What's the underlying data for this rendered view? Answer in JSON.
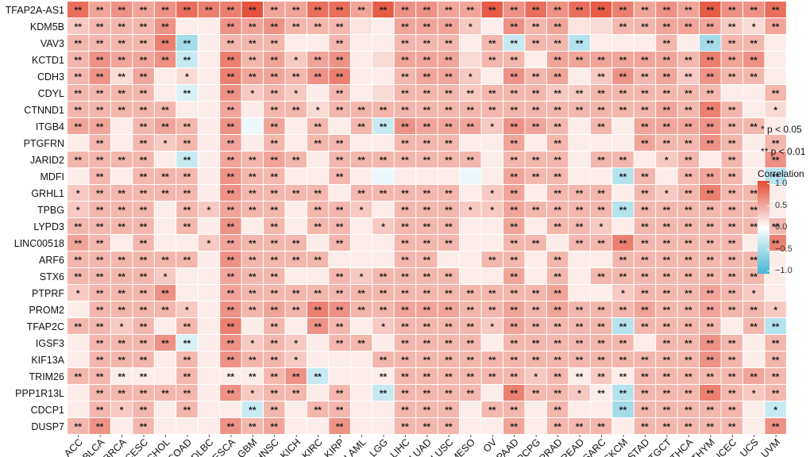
{
  "chart_data": {
    "type": "heatmap",
    "genes": [
      "TFAP2A-AS1",
      "KDM5B",
      "VAV3",
      "KCTD1",
      "CDH3",
      "CDYL",
      "CTNND1",
      "ITGB4",
      "PTGFRN",
      "JARID2",
      "MDFI",
      "GRHL1",
      "TPBG",
      "LYPD3",
      "LINC00518",
      "ARF6",
      "STX6",
      "PTPRF",
      "PROM2",
      "TFAP2C",
      "IGSF3",
      "KIF13A",
      "TRIM26",
      "PPP1R13L",
      "CDCP1",
      "DUSP7"
    ],
    "cancers": [
      "ACC",
      "BLCA",
      "BRCA",
      "CESC",
      "CHOL",
      "COAD",
      "DLBC",
      "ESCA",
      "GBM",
      "HNSC",
      "KICH",
      "KIRC",
      "KIRP",
      "LAML",
      "LGG",
      "LIHC",
      "LUAD",
      "LUSC",
      "MESO",
      "OV",
      "PAAD",
      "PCPG",
      "PRAD",
      "READ",
      "SARC",
      "SKCM",
      "STAD",
      "TGCT",
      "THCA",
      "THYM",
      "UCEC",
      "UCS",
      "UVM"
    ],
    "correlation": [
      [
        0.8,
        0.5,
        0.6,
        0.5,
        0.6,
        0.8,
        0.7,
        0.7,
        0.95,
        0.5,
        0.5,
        0.8,
        0.8,
        0.5,
        0.9,
        0.6,
        0.6,
        0.5,
        0.5,
        0.9,
        0.6,
        0.8,
        0.6,
        0.8,
        0.9,
        0.7,
        0.5,
        0.6,
        0.5,
        0.9,
        0.6,
        0.6,
        0.8
      ],
      [
        0.3,
        0.4,
        0.4,
        0.4,
        0.6,
        0.1,
        0.1,
        0.6,
        0.5,
        0.6,
        0.4,
        0.4,
        0.4,
        0.15,
        0.1,
        0.5,
        0.5,
        0.5,
        0.3,
        0.1,
        0.6,
        0.4,
        0.5,
        0.15,
        0.2,
        0.4,
        0.4,
        0.5,
        0.5,
        0.5,
        0.3,
        0.2,
        0.5
      ],
      [
        0.4,
        0.4,
        0.4,
        0.4,
        0.7,
        -0.5,
        0.1,
        0.4,
        0.4,
        0.4,
        0.1,
        0.1,
        0.4,
        0.1,
        0.1,
        0.4,
        0.4,
        0.4,
        0.1,
        0.4,
        -0.3,
        0.4,
        0.4,
        -0.4,
        0.1,
        0.1,
        0.1,
        0.4,
        0.1,
        -0.5,
        0.4,
        0.4,
        0.1
      ],
      [
        0.4,
        0.6,
        0.5,
        0.5,
        0.6,
        -0.3,
        0.1,
        0.7,
        0.4,
        0.5,
        0.3,
        0.5,
        0.6,
        0.1,
        0.2,
        0.5,
        0.5,
        0.5,
        0.2,
        0.4,
        0.4,
        0.1,
        0.5,
        0.5,
        0.5,
        0.5,
        0.5,
        0.5,
        0.4,
        0.7,
        0.5,
        0.6,
        0.1
      ],
      [
        0.4,
        0.6,
        0.2,
        0.5,
        0.1,
        0.2,
        0.1,
        0.7,
        0.5,
        0.5,
        0.4,
        0.6,
        0.7,
        0.1,
        0.1,
        0.4,
        0.5,
        0.5,
        0.3,
        0.1,
        0.6,
        0.4,
        0.5,
        0.1,
        0.3,
        0.6,
        0.4,
        0.5,
        0.3,
        0.6,
        0.4,
        0.4,
        0.1
      ],
      [
        0.4,
        0.4,
        0.4,
        0.4,
        0.1,
        -0.2,
        0.1,
        0.6,
        0.3,
        0.4,
        0.3,
        0.1,
        0.4,
        0.1,
        0.2,
        0.4,
        0.4,
        0.4,
        0.3,
        0.4,
        0.4,
        0.4,
        0.3,
        0.3,
        0.4,
        0.4,
        0.4,
        0.4,
        0.4,
        0.4,
        0.1,
        0.1,
        0.4
      ],
      [
        0.4,
        0.4,
        0.4,
        0.4,
        0.4,
        0.1,
        0.1,
        0.5,
        0.1,
        0.4,
        0.4,
        0.2,
        0.4,
        0.4,
        0.4,
        0.4,
        0.4,
        0.4,
        0.4,
        0.4,
        0.4,
        0.4,
        0.4,
        0.4,
        0.4,
        0.4,
        0.4,
        0.5,
        0.4,
        0.7,
        0.4,
        0.1,
        0.2
      ],
      [
        0.5,
        0.5,
        0.1,
        0.4,
        0.5,
        0.4,
        0.1,
        0.6,
        -0.1,
        0.5,
        0.1,
        0.4,
        0.1,
        0.4,
        -0.3,
        0.6,
        0.5,
        0.5,
        0.5,
        0.3,
        0.6,
        0.5,
        0.4,
        0.1,
        0.4,
        0.1,
        0.5,
        0.5,
        0.5,
        0.6,
        0.4,
        0.4,
        0.1
      ],
      [
        0.1,
        0.4,
        0.1,
        0.4,
        0.3,
        0.4,
        0.1,
        0.5,
        0.1,
        0.4,
        0.1,
        0.4,
        0.4,
        0.1,
        0.1,
        0.4,
        0.4,
        0.4,
        0.1,
        0.1,
        0.5,
        0.1,
        0.4,
        0.1,
        0.1,
        0.1,
        0.5,
        0.4,
        0.4,
        0.6,
        0.4,
        0.1,
        0.4
      ],
      [
        0.4,
        0.4,
        0.4,
        0.4,
        0.1,
        -0.3,
        0.1,
        0.5,
        0.4,
        0.5,
        0.4,
        0.1,
        0.4,
        0.4,
        0.4,
        0.4,
        0.4,
        0.4,
        0.4,
        0.1,
        0.4,
        0.4,
        0.4,
        0.1,
        0.4,
        0.4,
        0.1,
        0.3,
        0.4,
        0.1,
        0.4,
        0.1,
        0.6
      ],
      [
        0.1,
        0.4,
        0.1,
        0.4,
        0.4,
        0.4,
        0.1,
        0.6,
        0.4,
        0.4,
        0.1,
        0.1,
        0.4,
        0.1,
        -0.1,
        0.1,
        0.1,
        0.1,
        -0.1,
        0.1,
        0.5,
        0.4,
        0.4,
        0.1,
        0.1,
        -0.4,
        0.4,
        0.1,
        0.4,
        0.5,
        0.4,
        0.1,
        -0.4
      ],
      [
        0.3,
        0.4,
        0.4,
        0.4,
        0.4,
        0.4,
        0.1,
        0.6,
        0.4,
        0.4,
        0.4,
        0.4,
        0.1,
        0.4,
        0.4,
        0.4,
        0.4,
        0.4,
        0.1,
        0.3,
        0.5,
        0.1,
        0.4,
        0.4,
        0.4,
        0.1,
        0.4,
        0.3,
        0.4,
        0.7,
        0.4,
        0.4,
        0.1
      ],
      [
        0.3,
        0.4,
        0.4,
        0.4,
        0.1,
        0.4,
        0.3,
        0.5,
        0.4,
        0.4,
        0.1,
        0.4,
        0.4,
        0.3,
        0.1,
        0.4,
        0.4,
        0.4,
        0.3,
        0.3,
        0.5,
        0.4,
        0.4,
        0.4,
        0.4,
        -0.4,
        0.4,
        0.4,
        0.4,
        0.4,
        0.4,
        0.4,
        0.1
      ],
      [
        0.4,
        0.4,
        0.4,
        0.4,
        0.1,
        0.4,
        0.1,
        0.6,
        0.1,
        0.4,
        0.1,
        0.4,
        0.4,
        0.1,
        0.3,
        0.4,
        0.4,
        0.4,
        0.1,
        0.1,
        0.5,
        0.1,
        0.4,
        0.4,
        0.3,
        0.1,
        0.4,
        0.4,
        0.4,
        0.4,
        0.4,
        0.4,
        0.4
      ],
      [
        0.5,
        0.4,
        0.1,
        0.4,
        0.1,
        0.1,
        0.3,
        0.5,
        0.4,
        0.4,
        0.4,
        0.1,
        0.4,
        0.1,
        0.1,
        0.4,
        0.4,
        0.4,
        0.1,
        0.1,
        0.4,
        0.4,
        0.1,
        0.4,
        0.4,
        0.7,
        0.4,
        0.4,
        0.4,
        0.4,
        0.4,
        0.1,
        0.7
      ],
      [
        0.4,
        0.4,
        0.4,
        0.4,
        0.4,
        0.4,
        0.1,
        0.6,
        0.4,
        0.4,
        0.4,
        0.4,
        0.1,
        0.1,
        0.1,
        0.4,
        0.4,
        0.1,
        0.1,
        0.4,
        0.4,
        0.1,
        0.4,
        0.1,
        0.1,
        0.4,
        0.4,
        0.4,
        0.4,
        0.4,
        0.4,
        0.4,
        0.1
      ],
      [
        0.4,
        0.4,
        0.4,
        0.4,
        0.3,
        0.1,
        0.1,
        0.5,
        0.4,
        0.4,
        0.1,
        0.1,
        0.4,
        0.3,
        0.4,
        0.4,
        0.4,
        0.4,
        0.1,
        0.1,
        0.5,
        0.1,
        0.4,
        0.1,
        0.4,
        0.4,
        0.4,
        0.4,
        0.4,
        0.4,
        0.4,
        0.4,
        0.1
      ],
      [
        0.3,
        0.4,
        0.4,
        0.4,
        0.6,
        0.1,
        0.1,
        0.5,
        0.4,
        0.4,
        0.4,
        0.4,
        0.4,
        0.4,
        0.4,
        0.4,
        0.4,
        0.4,
        0.4,
        0.4,
        0.4,
        0.4,
        0.5,
        0.1,
        0.1,
        0.3,
        0.4,
        0.4,
        0.4,
        0.5,
        0.4,
        0.3,
        0.1
      ],
      [
        0.1,
        0.4,
        0.4,
        0.4,
        0.4,
        0.3,
        0.1,
        0.6,
        0.4,
        0.5,
        0.4,
        0.7,
        0.6,
        0.4,
        0.4,
        0.5,
        0.5,
        0.5,
        0.4,
        0.4,
        0.5,
        0.4,
        0.5,
        0.4,
        0.4,
        0.4,
        0.5,
        0.4,
        0.4,
        0.5,
        0.4,
        0.4,
        0.3
      ],
      [
        0.4,
        0.4,
        0.3,
        0.4,
        0.1,
        0.4,
        0.1,
        0.7,
        0.1,
        0.4,
        0.1,
        0.6,
        0.4,
        0.1,
        0.3,
        0.4,
        0.4,
        0.4,
        0.4,
        0.3,
        0.5,
        0.4,
        0.4,
        0.4,
        0.4,
        -0.4,
        0.4,
        0.4,
        0.4,
        0.4,
        0.1,
        0.4,
        -0.4
      ],
      [
        0.1,
        0.4,
        0.4,
        0.4,
        0.6,
        -0.2,
        0.1,
        0.6,
        0.3,
        0.4,
        0.3,
        0.1,
        0.4,
        0.4,
        0.1,
        0.4,
        0.4,
        0.4,
        0.4,
        0.1,
        0.4,
        0.4,
        0.4,
        0.4,
        0.4,
        0.4,
        0.1,
        0.4,
        0.4,
        0.6,
        0.4,
        0.1,
        0.4
      ],
      [
        0.1,
        0.4,
        0.4,
        0.4,
        0.1,
        0.4,
        0.1,
        0.6,
        0.4,
        0.4,
        0.3,
        0.1,
        0.1,
        0.1,
        0.4,
        0.4,
        0.4,
        0.4,
        0.4,
        0.4,
        0.4,
        0.4,
        0.4,
        0.4,
        0.4,
        0.4,
        0.4,
        0.4,
        0.4,
        0.6,
        0.4,
        0.1,
        0.4
      ],
      [
        0.4,
        0.4,
        0.1,
        0.1,
        0.1,
        0.4,
        0.1,
        0.1,
        0.1,
        0.4,
        0.6,
        -0.3,
        0.1,
        0.1,
        0.1,
        0.4,
        0.4,
        0.4,
        0.4,
        0.4,
        0.4,
        0.3,
        0.4,
        0.1,
        0.3,
        0.1,
        0.4,
        0.4,
        0.4,
        0.4,
        0.4,
        0.5,
        0.4
      ],
      [
        0.1,
        0.4,
        0.4,
        0.4,
        0.4,
        0.4,
        0.1,
        0.6,
        0.3,
        0.4,
        0.4,
        0.1,
        0.4,
        0.1,
        -0.3,
        0.4,
        0.4,
        0.4,
        0.4,
        0.1,
        0.7,
        0.4,
        0.4,
        0.3,
        0.1,
        -0.4,
        0.4,
        0.4,
        0.4,
        0.7,
        0.4,
        0.3,
        0.4
      ],
      [
        0.1,
        0.4,
        0.3,
        0.4,
        0.1,
        0.4,
        0.1,
        0.1,
        -0.3,
        0.4,
        0.1,
        0.4,
        0.4,
        0.1,
        0.1,
        0.4,
        0.4,
        0.4,
        0.1,
        0.4,
        0.4,
        0.1,
        0.4,
        0.1,
        0.1,
        -0.5,
        0.4,
        0.4,
        0.4,
        0.4,
        0.4,
        0.1,
        -0.3
      ],
      [
        0.4,
        0.6,
        0.1,
        0.4,
        0.1,
        0.1,
        0.1,
        0.6,
        0.4,
        0.5,
        0.1,
        0.1,
        0.6,
        0.1,
        0.1,
        0.4,
        0.4,
        0.4,
        0.1,
        0.1,
        0.5,
        0.1,
        0.4,
        0.4,
        0.4,
        0.1,
        0.4,
        0.4,
        0.4,
        0.4,
        0.4,
        0.1,
        0.6
      ]
    ],
    "significance": [
      "** ** ** ** ** ** ** ** ** ** ** ** ** ** ** ** ** ** ** ** ** ** ** ** ** ** ** ** ** ** ** ** **",
      "** ** ** ** ** . . ** ** ** ** ** ** . . ** ** ** * . ** ** ** . . ** ** ** ** ** ** * **",
      "** ** ** ** ** ** . ** ** ** . . ** . . ** ** ** . ** ** ** ** ** . . . ** . ** ** ** .",
      "** ** ** ** ** ** . ** ** ** * ** ** . . ** ** ** . ** ** . ** ** ** ** ** ** ** ** ** ** .",
      "** ** ** ** . * . ** ** ** ** ** ** . . ** ** ** * . ** ** ** . ** ** ** ** ** ** ** ** .",
      "** ** ** ** . ** . ** * ** * . ** . . ** ** ** ** ** ** ** ** ** ** ** ** ** ** ** . . **",
      "** ** ** ** ** . . ** . ** ** * ** ** ** ** ** ** ** ** ** ** ** ** ** ** ** ** ** ** ** . *",
      "** ** . ** ** ** . ** . ** . ** . ** ** ** ** ** ** * ** ** ** . ** . ** ** ** ** ** ** .",
      ". ** . ** * ** . ** . ** . ** ** . . ** ** ** . . ** . ** . . . ** ** ** ** ** . **",
      "** ** ** ** . ** . ** ** ** ** . ** ** ** ** ** ** ** . ** ** ** . ** ** . * ** . ** . **",
      ". ** . ** ** ** . ** ** ** . . ** . . . . . . . ** ** ** . . ** ** . ** ** ** . **",
      "* ** ** ** ** ** . ** ** ** ** ** . ** ** ** ** ** . * ** . ** ** ** . ** * ** ** ** ** .",
      "* ** ** ** . ** * ** ** ** . ** ** * . ** ** ** * * ** ** ** ** ** ** ** ** ** ** ** ** .",
      "** ** ** ** . ** . ** . ** . ** ** . * ** ** ** . . ** . ** ** * . ** ** ** ** ** ** **",
      "** ** . ** . . * ** ** ** ** . ** . . ** ** ** . . ** ** . ** ** ** ** ** ** ** ** . **",
      "** ** ** ** ** ** . ** ** ** ** ** . . . ** ** . . ** ** . ** . . ** ** ** ** ** ** ** .",
      "** ** ** ** * . . ** ** ** . . ** * ** ** ** ** . . ** . ** . ** ** ** ** ** ** ** ** .",
      "* ** ** ** ** . . ** ** ** ** ** ** ** ** ** ** ** ** ** ** ** ** . . * ** ** ** ** ** * .",
      ". ** ** ** ** * . ** ** ** ** ** ** ** ** ** ** ** ** ** ** ** ** ** ** ** ** ** ** ** ** ** *",
      "** ** * ** . ** . ** . ** . ** ** . * ** ** ** ** * ** ** ** ** ** ** ** ** ** ** . ** **",
      ". ** ** ** ** ** . ** * ** * . ** ** . ** ** ** ** . ** ** ** ** ** ** . ** ** ** ** . **",
      ". ** ** ** . ** . ** ** ** * . . . ** ** ** ** ** ** ** ** ** ** ** ** ** ** ** ** ** . **",
      "** ** ** ** . ** . ** ** ** ** ** . . ** ** ** ** ** ** ** * ** ** ** ** ** ** ** ** ** ** **",
      ". ** ** ** ** ** . ** * ** ** . ** . ** ** ** ** ** . ** ** ** * ** ** ** ** ** ** ** * **",
      ". ** * ** . ** . . ** ** . ** ** . . ** ** ** . ** ** . ** . . ** ** ** ** ** ** . *",
      "** ** . ** . . . ** ** ** . . ** . . ** ** ** . . ** . ** ** ** . ** ** ** ** ** . **"
    ],
    "legend": {
      "title": "Correlation",
      "ticks": [
        "1.0",
        "0.5",
        "0.0",
        "−0.5",
        "−1.0"
      ],
      "range": [
        -1,
        1
      ],
      "colors": {
        "high": "#e34a33",
        "mid": "#ffffff",
        "low": "#45b8d3"
      }
    },
    "annotations": [
      "* p < 0.05",
      "** p < 0.01"
    ]
  }
}
